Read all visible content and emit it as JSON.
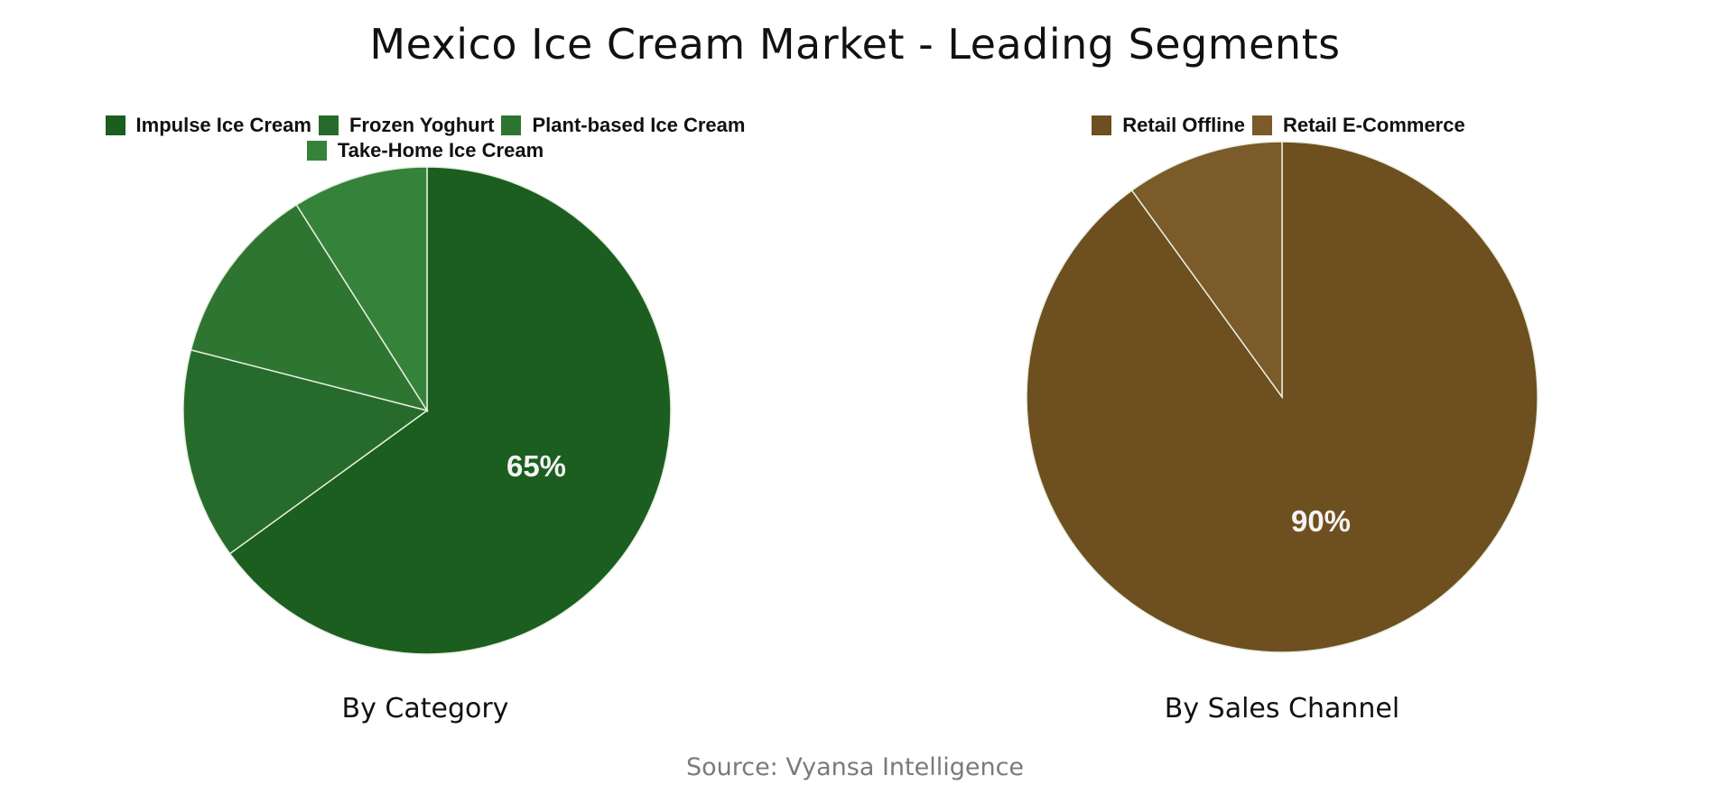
{
  "title": "Mexico Ice Cream Market - Leading Segments",
  "source": "Source: Vyansa Intelligence",
  "charts": [
    {
      "subtitle": "By Category",
      "highlight_label": "65%",
      "legend": [
        {
          "label": "Impulse Ice Cream",
          "color": "#1b5e20"
        },
        {
          "label": "Frozen Yoghurt",
          "color": "#266b2c"
        },
        {
          "label": "Plant-based Ice Cream",
          "color": "#2e7532"
        },
        {
          "label": "Take-Home Ice Cream",
          "color": "#35833b"
        }
      ]
    },
    {
      "subtitle": "By Sales Channel",
      "highlight_label": "90%",
      "legend": [
        {
          "label": "Retail Offline",
          "color": "#6e4f1f"
        },
        {
          "label": "Retail E-Commerce",
          "color": "#7b5b2a"
        }
      ]
    }
  ],
  "chart_data": [
    {
      "type": "pie",
      "title": "By Category",
      "categories": [
        "Impulse Ice Cream",
        "Frozen Yoghurt",
        "Plant-based Ice Cream",
        "Take-Home Ice Cream"
      ],
      "values": [
        65,
        14,
        12,
        9
      ],
      "colors": [
        "#1b5e20",
        "#266b2c",
        "#2e7532",
        "#35833b"
      ],
      "data_labels": [
        "65%",
        "",
        "",
        ""
      ],
      "start_angle": 0,
      "direction": "clockwise",
      "legend_position": "top"
    },
    {
      "type": "pie",
      "title": "By Sales Channel",
      "categories": [
        "Retail Offline",
        "Retail E-Commerce"
      ],
      "values": [
        90,
        10
      ],
      "colors": [
        "#6e4f1f",
        "#7b5b2a"
      ],
      "data_labels": [
        "90%",
        ""
      ],
      "start_angle": 0,
      "direction": "clockwise",
      "legend_position": "top"
    }
  ]
}
